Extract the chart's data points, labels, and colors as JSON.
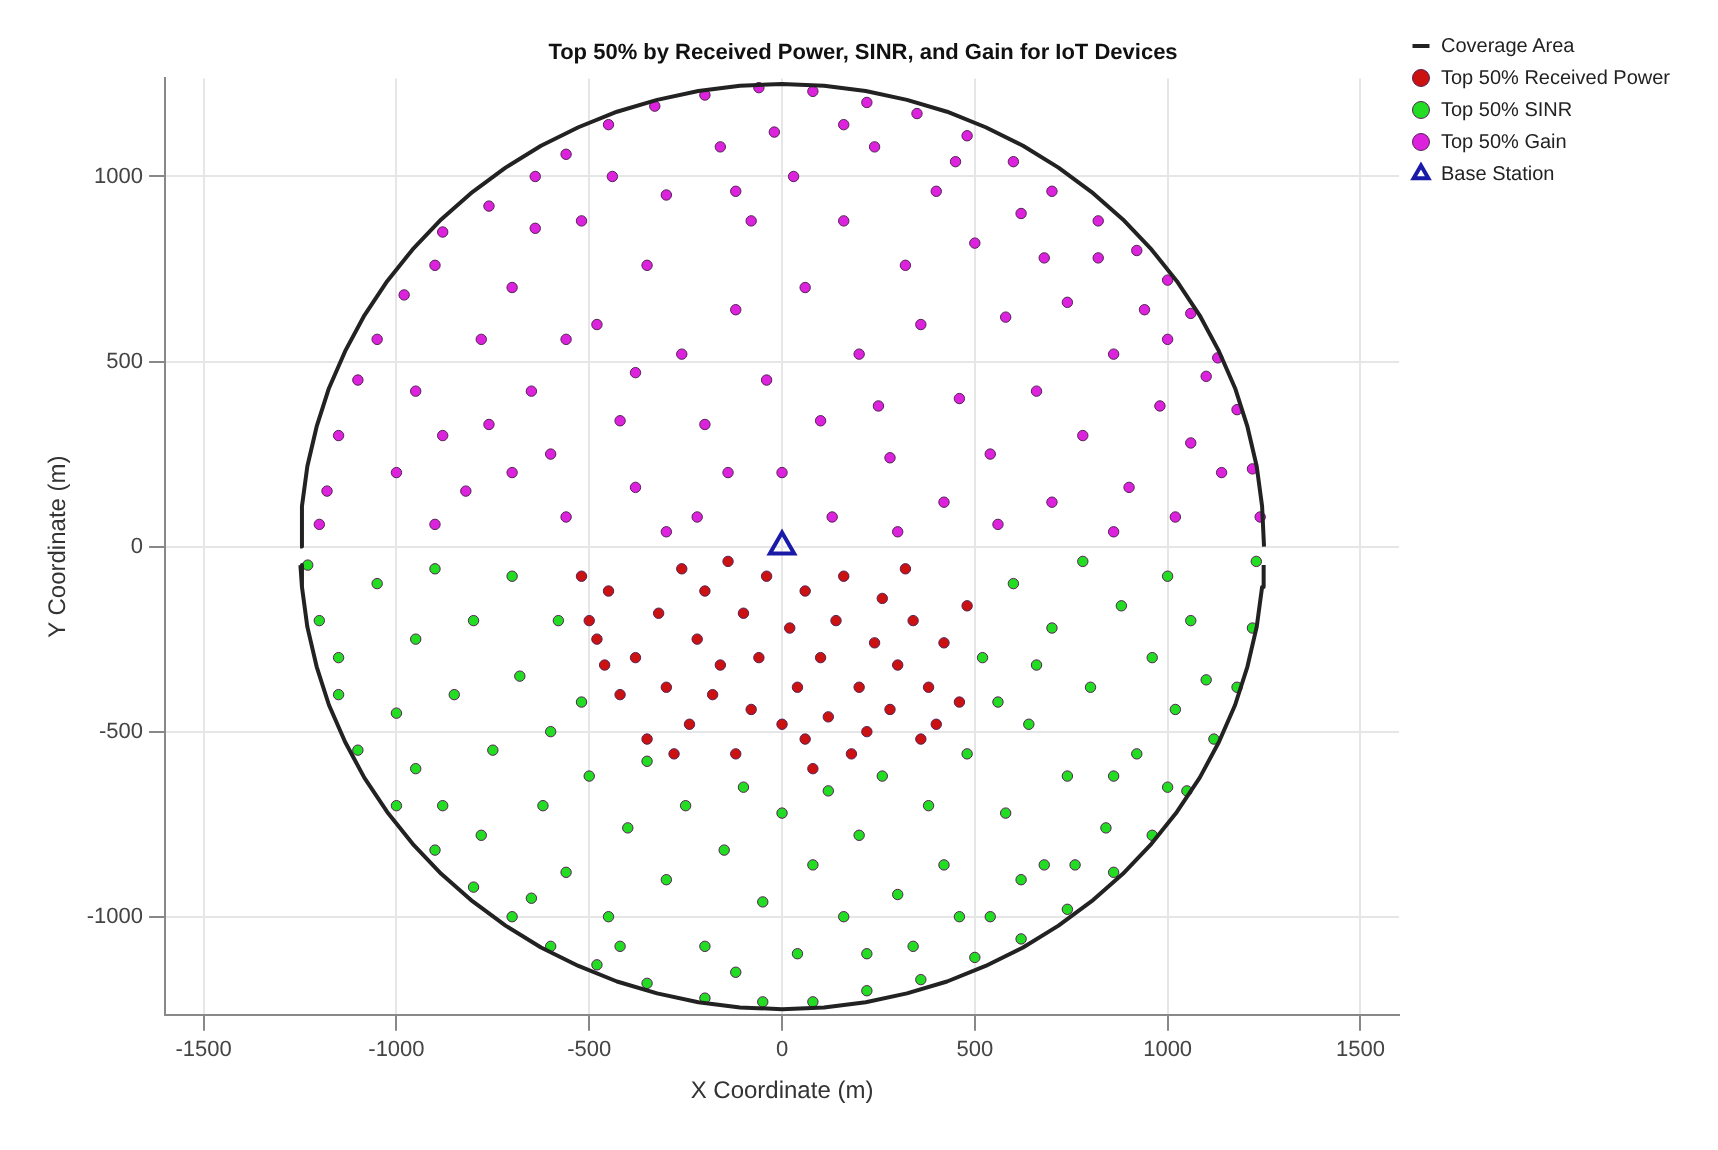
{
  "chart_data": {
    "type": "scatter",
    "title": "Top 50% by Received Power, SINR, and Gain for IoT Devices",
    "xlabel": "X Coordinate (m)",
    "ylabel": "Y Coordinate (m)",
    "xlim": [
      -1600,
      1600
    ],
    "ylim": [
      -1265,
      1265
    ],
    "xticks": [
      -1500,
      -1000,
      -500,
      0,
      500,
      1000,
      1500
    ],
    "yticks": [
      -1000,
      -500,
      0,
      500,
      1000
    ],
    "grid": true,
    "legend": "top right",
    "series": [
      {
        "name": "Coverage Area",
        "type": "line",
        "color": "#222222",
        "marker": "none",
        "line_style": "solid",
        "x": [
          -1250,
          -1245,
          -1231,
          -1207,
          -1175,
          -1133,
          -1083,
          -1024,
          -958,
          -884,
          -803,
          -717,
          -625,
          -528,
          -428,
          -324,
          -217,
          -109,
          0,
          109,
          217,
          324,
          428,
          528,
          625,
          717,
          803,
          884,
          958,
          1024,
          1083,
          1133,
          1175,
          1207,
          1231,
          1245,
          1250
        ],
        "values": [
          0,
          109,
          217,
          324,
          428,
          528,
          625,
          717,
          803,
          884,
          958,
          1024,
          1083,
          1133,
          1175,
          1207,
          1231,
          1245,
          1250,
          1245,
          1231,
          1207,
          1175,
          1133,
          1083,
          1024,
          958,
          884,
          803,
          717,
          625,
          528,
          428,
          324,
          217,
          109,
          0
        ]
      },
      {
        "type": "line",
        "color": "#222222",
        "marker": "none",
        "line_style": "solid",
        "x": [
          -1249,
          -1245,
          -1231,
          -1207,
          -1175,
          -1133,
          -1083,
          -1024,
          -958,
          -884,
          -803,
          -717,
          -625,
          -528,
          -428,
          -324,
          -217,
          -109,
          0,
          109,
          217,
          324,
          428,
          528,
          625,
          717,
          803,
          884,
          958,
          1024,
          1083,
          1133,
          1175,
          1207,
          1231,
          1245,
          1249
        ],
        "values": [
          -50,
          -109,
          -217,
          -324,
          -428,
          -528,
          -625,
          -717,
          -803,
          -884,
          -958,
          -1024,
          -1083,
          -1133,
          -1175,
          -1207,
          -1231,
          -1245,
          -1250,
          -1245,
          -1231,
          -1207,
          -1175,
          -1133,
          -1083,
          -1024,
          -958,
          -884,
          -803,
          -717,
          -625,
          -528,
          -428,
          -324,
          -217,
          -109,
          -50
        ]
      },
      {
        "name": "Top 50% Received Power",
        "type": "scatter",
        "color": "#cc1111",
        "marker": "circle",
        "x": [
          -520,
          -480,
          -450,
          -420,
          -380,
          -350,
          -320,
          -300,
          -260,
          -240,
          -220,
          -200,
          -180,
          -160,
          -120,
          -100,
          -80,
          -60,
          -40,
          0,
          20,
          40,
          60,
          80,
          100,
          120,
          140,
          160,
          200,
          220,
          240,
          260,
          280,
          300,
          340,
          360,
          380,
          420,
          460,
          480,
          -460,
          -140,
          320,
          -280,
          180,
          400,
          -500,
          60
        ],
        "values": [
          -80,
          -250,
          -120,
          -400,
          -300,
          -520,
          -180,
          -380,
          -60,
          -480,
          -250,
          -120,
          -400,
          -320,
          -560,
          -180,
          -440,
          -300,
          -80,
          -480,
          -220,
          -380,
          -120,
          -600,
          -300,
          -460,
          -200,
          -80,
          -380,
          -500,
          -260,
          -140,
          -440,
          -320,
          -200,
          -520,
          -380,
          -260,
          -420,
          -160,
          -320,
          -40,
          -60,
          -560,
          -560,
          -480,
          -200,
          -520
        ]
      },
      {
        "name": "Top 50% SINR",
        "type": "scatter",
        "color": "#22dd22",
        "marker": "circle",
        "x": [
          -1230,
          -1200,
          -1150,
          -1100,
          -1000,
          -900,
          -800,
          -700,
          -600,
          -480,
          -350,
          -200,
          -50,
          80,
          220,
          360,
          500,
          620,
          740,
          860,
          960,
          1050,
          1120,
          1180,
          1220,
          1230,
          -1050,
          -950,
          -900,
          -850,
          -800,
          -750,
          -700,
          -680,
          -620,
          -600,
          -580,
          -560,
          -500,
          -450,
          -400,
          -350,
          -300,
          -250,
          -200,
          -150,
          -100,
          -50,
          0,
          40,
          80,
          120,
          160,
          200,
          260,
          300,
          340,
          380,
          420,
          480,
          520,
          540,
          580,
          600,
          640,
          680,
          700,
          740,
          780,
          800,
          840,
          880,
          920,
          960,
          1000,
          1020,
          1060,
          1100,
          -1150,
          -1000,
          -950,
          -880,
          -780,
          -650,
          -520,
          -420,
          -120,
          220,
          460,
          620,
          860,
          1000,
          560,
          660,
          760
        ],
        "values": [
          -50,
          -200,
          -400,
          -550,
          -700,
          -820,
          -920,
          -1000,
          -1080,
          -1130,
          -1180,
          -1220,
          -1230,
          -1230,
          -1200,
          -1170,
          -1110,
          -1060,
          -980,
          -880,
          -780,
          -660,
          -520,
          -380,
          -220,
          -40,
          -100,
          -250,
          -60,
          -400,
          -200,
          -550,
          -80,
          -350,
          -700,
          -500,
          -200,
          -880,
          -620,
          -1000,
          -760,
          -580,
          -900,
          -700,
          -1080,
          -820,
          -650,
          -960,
          -720,
          -1100,
          -860,
          -660,
          -1000,
          -780,
          -620,
          -940,
          -1080,
          -700,
          -860,
          -560,
          -300,
          -1000,
          -720,
          -100,
          -480,
          -860,
          -220,
          -620,
          -40,
          -380,
          -760,
          -160,
          -560,
          -300,
          -80,
          -440,
          -200,
          -360,
          -300,
          -450,
          -600,
          -700,
          -780,
          -950,
          -420,
          -1080,
          -1150,
          -1100,
          -1000,
          -900,
          -620,
          -650,
          -420,
          -320,
          -860
        ]
      },
      {
        "name": "Top 50% Gain",
        "type": "scatter",
        "color": "#dd22dd",
        "marker": "circle",
        "x": [
          -880,
          -760,
          -640,
          -560,
          -450,
          -330,
          -200,
          -60,
          80,
          220,
          350,
          480,
          600,
          700,
          820,
          920,
          1000,
          1060,
          1130,
          1180,
          1220,
          1240,
          -1180,
          -1150,
          -1100,
          -1050,
          -980,
          -900,
          -1200,
          -950,
          -880,
          -820,
          -780,
          -700,
          -650,
          -600,
          -560,
          -520,
          -480,
          -420,
          -380,
          -350,
          -300,
          -260,
          -220,
          -200,
          -160,
          -120,
          -80,
          -40,
          0,
          30,
          60,
          100,
          130,
          160,
          200,
          240,
          280,
          320,
          360,
          400,
          420,
          460,
          500,
          540,
          580,
          620,
          660,
          700,
          740,
          780,
          820,
          860,
          900,
          940,
          980,
          1020,
          1060,
          1100,
          1140,
          -1000,
          -900,
          -700,
          -640,
          -440,
          -380,
          -140,
          -20,
          250,
          450,
          680,
          860,
          1000,
          -760,
          -560,
          300,
          -300,
          160,
          -120,
          560
        ],
        "values": [
          850,
          920,
          1000,
          1060,
          1140,
          1190,
          1220,
          1240,
          1230,
          1200,
          1170,
          1110,
          1040,
          960,
          880,
          800,
          720,
          630,
          510,
          370,
          210,
          80,
          150,
          300,
          450,
          560,
          680,
          760,
          60,
          420,
          300,
          150,
          560,
          700,
          420,
          250,
          80,
          880,
          600,
          340,
          160,
          760,
          950,
          520,
          80,
          330,
          1080,
          640,
          880,
          450,
          200,
          1000,
          700,
          340,
          80,
          880,
          520,
          1080,
          240,
          760,
          600,
          960,
          120,
          400,
          820,
          250,
          620,
          900,
          420,
          120,
          660,
          300,
          780,
          520,
          160,
          640,
          380,
          80,
          280,
          460,
          200,
          200,
          60,
          200,
          860,
          1000,
          470,
          200,
          1120,
          380,
          1040,
          780,
          40,
          560,
          330,
          560,
          40,
          40,
          1140,
          960,
          60
        ]
      },
      {
        "name": "Base Station",
        "type": "scatter",
        "color": "#1a1aa8",
        "marker": "triangle",
        "x": [
          0
        ],
        "values": [
          0
        ]
      }
    ]
  }
}
